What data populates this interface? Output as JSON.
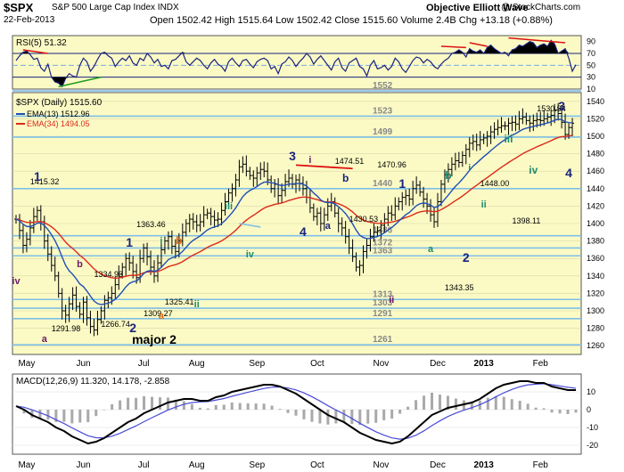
{
  "header": {
    "ticker": "$SPX",
    "description": "S&P 500 Large Cap Index  INDX",
    "date": "22-Feb-2013",
    "ohlc": "Open 1502.42  High 1515.64  Low 1502.42  Close 1515.60  Volume 2.4B  Chg +13.18 (+0.88%)",
    "brand": "Objective Elliott Wave",
    "credit": "@ StockCharts.com"
  },
  "colors": {
    "panel_bg": "#fbfac5",
    "hline": "#7fbfe6",
    "ema13": "#1f4fb5",
    "ema34": "#dc2a1a",
    "wave_navy": "#1a237e",
    "wave_green": "#1e8c6f",
    "wave_orange": "#e06b1a",
    "wave_purple": "#6a1b6a",
    "red_line": "#dd1111",
    "green_line": "#1b9e1b"
  },
  "chart_data": [
    {
      "type": "line",
      "title": "RSI(5) 51.32",
      "series": [
        {
          "name": "RSI(5)",
          "value_label": "51.32"
        }
      ],
      "ylim": [
        10,
        100
      ],
      "y_ticks": [
        "90",
        "70",
        "50",
        "30",
        "10"
      ],
      "reference_levels": [
        70,
        50,
        30
      ],
      "values": [
        58,
        66,
        72,
        74,
        68,
        60,
        62,
        46,
        40,
        52,
        30,
        22,
        20,
        14,
        28,
        36,
        32,
        30,
        50,
        62,
        56,
        40,
        48,
        60,
        70,
        72,
        66,
        62,
        48,
        56,
        62,
        58,
        66,
        54,
        50,
        62,
        58,
        70,
        64,
        54,
        60,
        48,
        50,
        44,
        58,
        60,
        66,
        72,
        56,
        50,
        56,
        62,
        58,
        50,
        44,
        54,
        60,
        52,
        48,
        40,
        56,
        62,
        54,
        48,
        58,
        60,
        52,
        46,
        56,
        60,
        62,
        58,
        44,
        48,
        36,
        52,
        56,
        64,
        58,
        48,
        56,
        62,
        70,
        64,
        52,
        60,
        66,
        58,
        50,
        42,
        56,
        62,
        46,
        40,
        54,
        58,
        62,
        48,
        44,
        32,
        50,
        58,
        44,
        46,
        50,
        42,
        48,
        62,
        56,
        44,
        38,
        48,
        58,
        64,
        62,
        54,
        60,
        56,
        48,
        44,
        52,
        58,
        62,
        70,
        72,
        76,
        72,
        64,
        78,
        74,
        72,
        76,
        70,
        80,
        84,
        78,
        74,
        70,
        72,
        66,
        76,
        78,
        84,
        82,
        86,
        90,
        88,
        80,
        84,
        86,
        82,
        92,
        86,
        70,
        74,
        78,
        62,
        40,
        51
      ]
    },
    {
      "type": "line",
      "title": "$SPX (Daily) 1515.60",
      "series": [
        {
          "name": "$SPX (Daily)",
          "value_label": "1515.60"
        },
        {
          "name": "EMA(13)",
          "value_label": "1512.96"
        },
        {
          "name": "EMA(34)",
          "value_label": "1494.05"
        }
      ],
      "x_labels": [
        "May",
        "Jun",
        "Jul",
        "Aug",
        "Sep",
        "Oct",
        "Nov",
        "Dec",
        "2013",
        "Feb"
      ],
      "ylim": [
        1250,
        1550
      ],
      "y_ticks": [
        "1540",
        "1520",
        "1500",
        "1480",
        "1460",
        "1440",
        "1420",
        "1400",
        "1380",
        "1360",
        "1340",
        "1320",
        "1300",
        "1280",
        "1260"
      ],
      "levels": [
        "1552",
        "1523",
        "1499",
        "1440",
        "1386",
        "1372",
        "1363",
        "1313",
        "1303",
        "1291",
        "1261"
      ],
      "price_labels": [
        "1415.32",
        "1363.46",
        "1334.93",
        "1309.27",
        "1325.41",
        "1291.98",
        "1266.74",
        "1474.51",
        "1470.96",
        "1430.53",
        "1448.00",
        "1398.11",
        "1343.35",
        "1530.94"
      ],
      "wave_labels": [
        "1",
        "iv",
        "b",
        "1",
        "i",
        "b",
        "2",
        "ii",
        "a",
        "a",
        "major 2",
        "iii",
        "iv",
        "3",
        "i",
        "4",
        "a",
        "b",
        "1",
        "a",
        "b",
        "i",
        "ii",
        "2",
        "ii",
        "iii",
        "iv",
        "3",
        "4"
      ],
      "close": [
        1405,
        1392,
        1375,
        1382,
        1395,
        1408,
        1415,
        1402,
        1380,
        1365,
        1352,
        1340,
        1320,
        1300,
        1295,
        1308,
        1318,
        1305,
        1296,
        1310,
        1292,
        1282,
        1278,
        1290,
        1300,
        1312,
        1315,
        1320,
        1330,
        1342,
        1350,
        1360,
        1355,
        1345,
        1338,
        1360,
        1372,
        1362,
        1350,
        1340,
        1355,
        1370,
        1380,
        1385,
        1374,
        1368,
        1380,
        1390,
        1400,
        1405,
        1402,
        1398,
        1402,
        1410,
        1412,
        1408,
        1404,
        1405,
        1415,
        1425,
        1435,
        1440,
        1450,
        1465,
        1468,
        1460,
        1455,
        1452,
        1458,
        1462,
        1460,
        1450,
        1440,
        1445,
        1432,
        1438,
        1448,
        1452,
        1445,
        1450,
        1446,
        1440,
        1430,
        1418,
        1408,
        1412,
        1400,
        1410,
        1420,
        1425,
        1412,
        1400,
        1395,
        1385,
        1372,
        1362,
        1350,
        1352,
        1368,
        1375,
        1385,
        1390,
        1392,
        1398,
        1405,
        1412,
        1410,
        1420,
        1425,
        1430,
        1432,
        1428,
        1440,
        1444,
        1436,
        1428,
        1420,
        1410,
        1402,
        1425,
        1445,
        1456,
        1462,
        1468,
        1472,
        1470,
        1478,
        1485,
        1492,
        1494,
        1490,
        1496,
        1498,
        1500,
        1505,
        1508,
        1510,
        1512,
        1512,
        1515,
        1516,
        1514,
        1520,
        1522,
        1518,
        1515,
        1518,
        1519,
        1518,
        1520,
        1522,
        1524,
        1530,
        1526,
        1516,
        1502,
        1510,
        1515
      ]
    },
    {
      "type": "line",
      "title": "MACD(12,26,9) 11.320, 14.178, -2.858",
      "series": [
        {
          "name": "MACD(12,26,9)",
          "value_label": "11.320"
        },
        {
          "name": "Signal",
          "value_label": "14.178"
        },
        {
          "name": "Histogram",
          "value_label": "-2.858"
        }
      ],
      "x_labels": [
        "May",
        "Jun",
        "Jul",
        "Aug",
        "Sep",
        "Oct",
        "Nov",
        "Dec",
        "2013",
        "Feb"
      ],
      "ylim": [
        -25,
        20
      ],
      "y_ticks": [
        "10",
        "0",
        "-10",
        "-20"
      ],
      "macd": [
        2,
        0,
        -3,
        -5,
        -7,
        -10,
        -12,
        -15,
        -17,
        -19,
        -18,
        -16,
        -13,
        -10,
        -7,
        -5,
        -2,
        0,
        2,
        4,
        5,
        6,
        6,
        5,
        5,
        7,
        8,
        10,
        11,
        12,
        13,
        14,
        14,
        13,
        11,
        9,
        6,
        3,
        0,
        -3,
        -5,
        -7,
        -10,
        -13,
        -15,
        -17,
        -18,
        -19,
        -18,
        -15,
        -11,
        -7,
        -3,
        -1,
        1,
        2,
        3,
        4,
        6,
        9,
        12,
        14,
        15,
        16,
        16,
        15,
        15,
        13,
        12,
        11,
        11
      ]
    }
  ]
}
